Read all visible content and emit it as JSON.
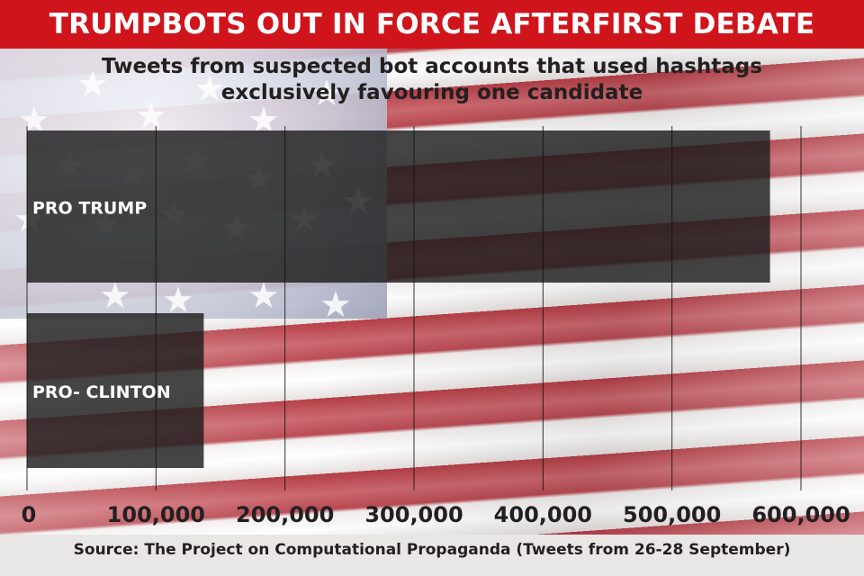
{
  "banner": {
    "title": "TRUMPBOTS OUT IN FORCE AFTERFIRST DEBATE"
  },
  "chart_data": {
    "type": "bar",
    "orientation": "horizontal",
    "subtitle_lines": [
      "Tweets from suspected bot accounts that used hashtags",
      "exclusively favouring one candidate"
    ],
    "categories": [
      "PRO TRUMP",
      "PRO- CLINTON"
    ],
    "values": [
      576000,
      137000
    ],
    "xlim": [
      0,
      600000
    ],
    "xticks": [
      0,
      100000,
      200000,
      300000,
      400000,
      500000,
      600000
    ],
    "xtick_labels": [
      "0",
      "100,000",
      "200,000",
      "300,000",
      "400,000",
      "500,000",
      "600,000"
    ],
    "grid": "vertical",
    "bar_color": "#1d1d1d"
  },
  "footer": {
    "source": "Source: The Project on Computational Propaganda (Tweets from 26-28 September)"
  },
  "colors": {
    "banner": "#d0141b",
    "flag_red": "#c63a44",
    "flag_blue": "#9ea2b8"
  }
}
